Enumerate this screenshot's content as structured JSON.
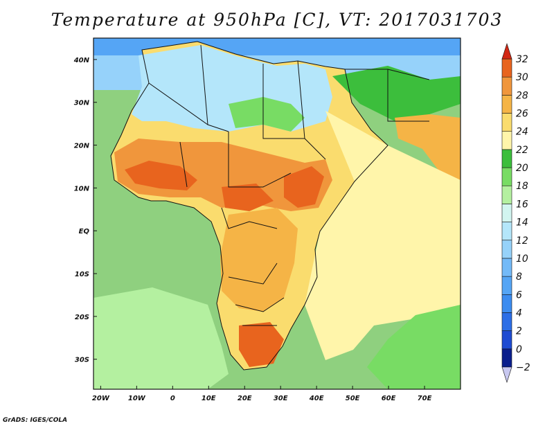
{
  "title": "Temperature at 950hPa [C], VT: 2017031703",
  "credit": "GrADS: IGES/COLA",
  "map": {
    "lon_range": [
      -22,
      80
    ],
    "lat_range": [
      -37,
      45
    ],
    "lon_ticks": [
      {
        "value": -20,
        "label": "20W"
      },
      {
        "value": -10,
        "label": "10W"
      },
      {
        "value": 0,
        "label": "0"
      },
      {
        "value": 10,
        "label": "10E"
      },
      {
        "value": 20,
        "label": "20E"
      },
      {
        "value": 30,
        "label": "30E"
      },
      {
        "value": 40,
        "label": "40E"
      },
      {
        "value": 50,
        "label": "50E"
      },
      {
        "value": 60,
        "label": "60E"
      },
      {
        "value": 70,
        "label": "70E"
      }
    ],
    "lat_ticks": [
      {
        "value": 40,
        "label": "40N"
      },
      {
        "value": 30,
        "label": "30N"
      },
      {
        "value": 20,
        "label": "20N"
      },
      {
        "value": 10,
        "label": "10N"
      },
      {
        "value": 0,
        "label": "EQ"
      },
      {
        "value": -10,
        "label": "10S"
      },
      {
        "value": -20,
        "label": "20S"
      },
      {
        "value": -30,
        "label": "30S"
      }
    ],
    "ocean_color": "#8fd07f",
    "land_color": "#ffe59a"
  },
  "colorbar": {
    "levels": [
      {
        "label": "−2",
        "color": "#0a1e8c"
      },
      {
        "label": "0",
        "color": "#1e4bd2"
      },
      {
        "label": "2",
        "color": "#2c6ee6"
      },
      {
        "label": "4",
        "color": "#3c8cf0"
      },
      {
        "label": "6",
        "color": "#55a5f5"
      },
      {
        "label": "8",
        "color": "#73baf8"
      },
      {
        "label": "10",
        "color": "#96d2fa"
      },
      {
        "label": "12",
        "color": "#b4e6fa"
      },
      {
        "label": "14",
        "color": "#d2f5f0"
      },
      {
        "label": "16",
        "color": "#b4f0a0"
      },
      {
        "label": "18",
        "color": "#78dc64"
      },
      {
        "label": "20",
        "color": "#3cbe3c"
      },
      {
        "label": "22",
        "color": "#fff5aa"
      },
      {
        "label": "24",
        "color": "#fadc6e"
      },
      {
        "label": "26",
        "color": "#f5b446"
      },
      {
        "label": "28",
        "color": "#f0963c"
      },
      {
        "label": "30",
        "color": "#e8641e"
      },
      {
        "label": "32",
        "color": "#d22814"
      }
    ],
    "over_color": "#d22814",
    "under_color": "#c8c8f0"
  }
}
